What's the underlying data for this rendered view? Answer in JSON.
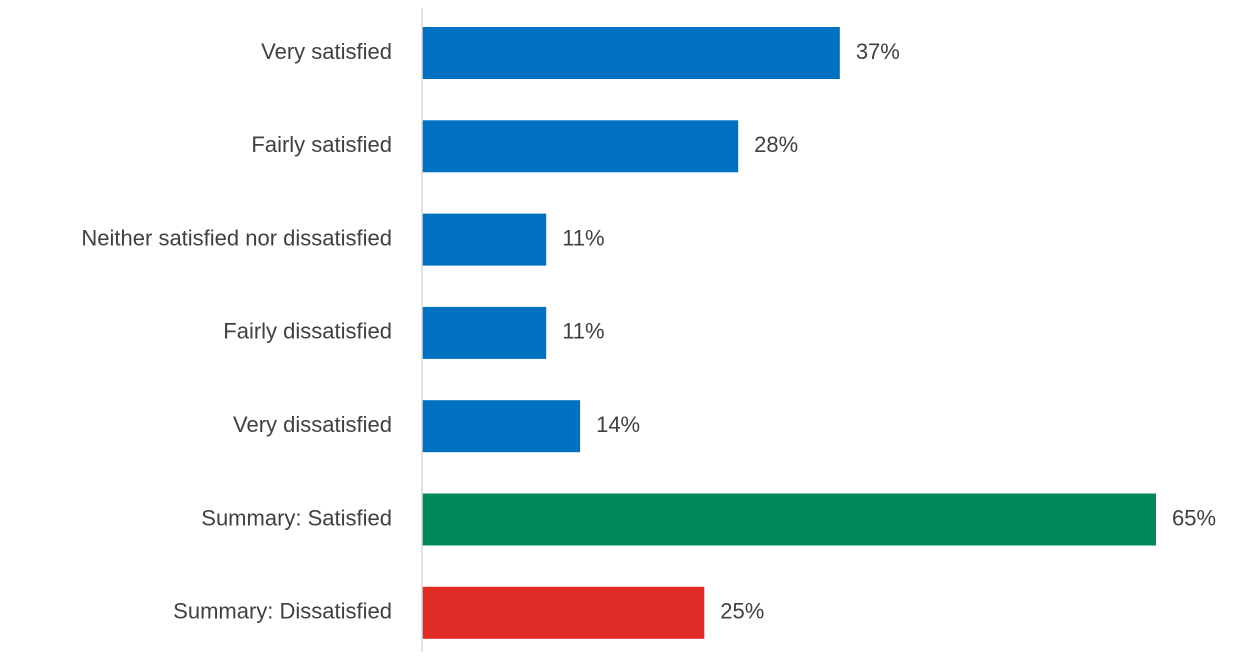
{
  "chart_data": {
    "type": "bar",
    "orientation": "horizontal",
    "title": "",
    "xlabel": "",
    "ylabel": "",
    "xlim": [
      0,
      65
    ],
    "grid": false,
    "legend": "none",
    "value_suffix": "%",
    "categories": [
      "Very satisfied",
      "Fairly satisfied",
      "Neither satisfied nor dissatisfied",
      "Fairly dissatisfied",
      "Very dissatisfied",
      "Summary: Satisfied",
      "Summary: Dissatisfied"
    ],
    "values": [
      37,
      28,
      11,
      11,
      14,
      65,
      25
    ],
    "data_labels": [
      "37%",
      "28%",
      "11%",
      "11%",
      "14%",
      "65%",
      "25%"
    ],
    "bar_colors": [
      "#0070C0",
      "#0070C0",
      "#0070C0",
      "#0070C0",
      "#0070C0",
      "#00875A",
      "#E02B27"
    ],
    "axis_color": "#D9D9D9",
    "text_color": "#404040"
  }
}
